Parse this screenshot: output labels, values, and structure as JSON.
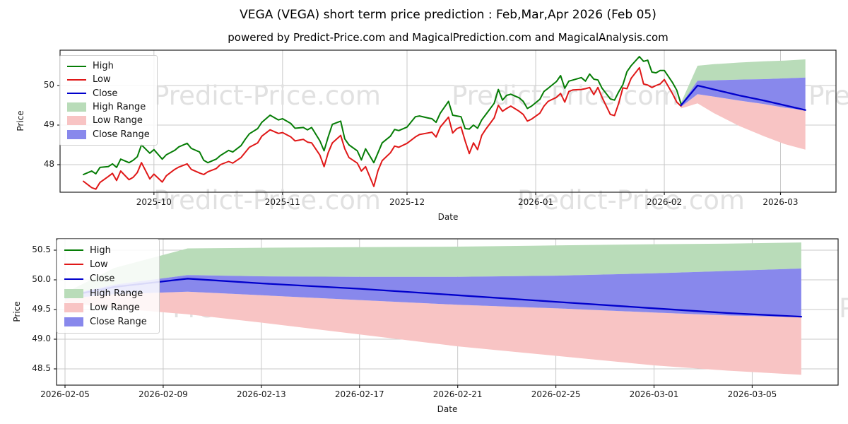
{
  "title": "VEGA (VEGA) short term price prediction : Feb,Mar,Apr 2026 (Feb 05)",
  "subtitle": "powered by Predict-Price.com and MagicalPrediction.com and MagicalAnalysis.com",
  "watermark_text": "Predict-Price.com",
  "colors": {
    "high": "#067d06",
    "low": "#e01818",
    "close": "#0000cc",
    "high_range": "#b9dcb9",
    "low_range": "#f8c4c4",
    "close_range": "#8888ec",
    "grid": "#c9c9c9",
    "axis": "#222222",
    "watermark": "#e1e1e1"
  },
  "legend_items": [
    {
      "label": "High",
      "type": "line",
      "color_key": "high"
    },
    {
      "label": "Low",
      "type": "line",
      "color_key": "low"
    },
    {
      "label": "Close",
      "type": "line",
      "color_key": "close"
    },
    {
      "label": "High Range",
      "type": "patch",
      "color_key": "high_range"
    },
    {
      "label": "Low Range",
      "type": "patch",
      "color_key": "low_range"
    },
    {
      "label": "Close Range",
      "type": "patch",
      "color_key": "close_range"
    }
  ],
  "chart_data": [
    {
      "type": "line",
      "name": "historical-and-forecast",
      "xlabel": "Date",
      "ylabel": "Price",
      "legend_position": "upper left",
      "grid": true,
      "ylim": [
        47.3,
        50.9
      ],
      "start_date": "2025-09-14",
      "offset_unit": "days",
      "x_ticks": [
        {
          "offset": 17,
          "label": "2025-10"
        },
        {
          "offset": 48,
          "label": "2025-11"
        },
        {
          "offset": 78,
          "label": "2025-12"
        },
        {
          "offset": 109,
          "label": "2026-01"
        },
        {
          "offset": 140,
          "label": "2026-02"
        },
        {
          "offset": 168,
          "label": "2026-03"
        }
      ],
      "y_ticks": [
        {
          "value": 48,
          "label": "48"
        },
        {
          "value": 49,
          "label": "49"
        },
        {
          "value": 50,
          "label": "50"
        }
      ],
      "history_rows_format": [
        "day_offset",
        "high",
        "low"
      ],
      "history": [
        [
          0,
          47.75,
          47.58
        ],
        [
          2,
          47.84,
          47.42
        ],
        [
          3,
          47.77,
          47.38
        ],
        [
          4,
          47.93,
          47.55
        ],
        [
          6,
          47.95,
          47.7
        ],
        [
          7,
          48.02,
          47.78
        ],
        [
          8,
          47.93,
          47.6
        ],
        [
          9,
          48.14,
          47.84
        ],
        [
          11,
          48.05,
          47.62
        ],
        [
          12,
          48.11,
          47.68
        ],
        [
          13,
          48.2,
          47.8
        ],
        [
          14,
          48.5,
          48.05
        ],
        [
          16,
          48.29,
          47.64
        ],
        [
          17,
          48.38,
          47.76
        ],
        [
          19,
          48.14,
          47.56
        ],
        [
          20,
          48.25,
          47.72
        ],
        [
          22,
          48.36,
          47.88
        ],
        [
          23,
          48.45,
          47.94
        ],
        [
          25,
          48.54,
          48.02
        ],
        [
          26,
          48.41,
          47.88
        ],
        [
          28,
          48.32,
          47.79
        ],
        [
          29,
          48.11,
          47.75
        ],
        [
          30,
          48.05,
          47.82
        ],
        [
          32,
          48.14,
          47.9
        ],
        [
          33,
          48.23,
          48.0
        ],
        [
          35,
          48.36,
          48.08
        ],
        [
          36,
          48.32,
          48.04
        ],
        [
          38,
          48.48,
          48.18
        ],
        [
          39,
          48.64,
          48.31
        ],
        [
          40,
          48.78,
          48.44
        ],
        [
          42,
          48.91,
          48.55
        ],
        [
          43,
          49.07,
          48.72
        ],
        [
          45,
          49.25,
          48.88
        ],
        [
          47,
          49.13,
          48.79
        ],
        [
          48,
          49.16,
          48.81
        ],
        [
          50,
          49.04,
          48.7
        ],
        [
          51,
          48.92,
          48.6
        ],
        [
          53,
          48.94,
          48.64
        ],
        [
          54,
          48.88,
          48.57
        ],
        [
          55,
          48.94,
          48.55
        ],
        [
          57,
          48.6,
          48.24
        ],
        [
          58,
          48.35,
          47.95
        ],
        [
          59,
          48.7,
          48.3
        ],
        [
          60,
          49.02,
          48.55
        ],
        [
          62,
          49.1,
          48.74
        ],
        [
          63,
          48.65,
          48.4
        ],
        [
          64,
          48.5,
          48.18
        ],
        [
          66,
          48.35,
          48.04
        ],
        [
          67,
          48.12,
          47.84
        ],
        [
          68,
          48.4,
          47.95
        ],
        [
          70,
          48.05,
          47.45
        ],
        [
          71,
          48.3,
          47.85
        ],
        [
          72,
          48.55,
          48.1
        ],
        [
          74,
          48.72,
          48.3
        ],
        [
          75,
          48.89,
          48.47
        ],
        [
          76,
          48.86,
          48.44
        ],
        [
          78,
          48.95,
          48.54
        ],
        [
          80,
          49.21,
          48.7
        ],
        [
          81,
          49.23,
          48.76
        ],
        [
          83,
          49.18,
          48.8
        ],
        [
          84,
          49.16,
          48.82
        ],
        [
          85,
          49.07,
          48.7
        ],
        [
          86,
          49.3,
          48.95
        ],
        [
          88,
          49.6,
          49.2
        ],
        [
          89,
          49.25,
          48.8
        ],
        [
          90,
          49.23,
          48.91
        ],
        [
          91,
          49.21,
          48.95
        ],
        [
          92,
          48.91,
          48.6
        ],
        [
          93,
          48.9,
          48.28
        ],
        [
          94,
          49.0,
          48.55
        ],
        [
          95,
          48.92,
          48.38
        ],
        [
          96,
          49.13,
          48.74
        ],
        [
          97,
          49.27,
          48.9
        ],
        [
          99,
          49.55,
          49.18
        ],
        [
          100,
          49.9,
          49.5
        ],
        [
          101,
          49.63,
          49.35
        ],
        [
          102,
          49.75,
          49.42
        ],
        [
          103,
          49.78,
          49.48
        ],
        [
          105,
          49.69,
          49.35
        ],
        [
          106,
          49.6,
          49.27
        ],
        [
          107,
          49.42,
          49.1
        ],
        [
          108,
          49.48,
          49.15
        ],
        [
          110,
          49.65,
          49.3
        ],
        [
          111,
          49.85,
          49.48
        ],
        [
          112,
          49.93,
          49.6
        ],
        [
          114,
          50.1,
          49.7
        ],
        [
          115,
          50.25,
          49.8
        ],
        [
          116,
          49.93,
          49.58
        ],
        [
          117,
          50.11,
          49.85
        ],
        [
          118,
          50.14,
          49.89
        ],
        [
          120,
          50.2,
          49.9
        ],
        [
          121,
          50.11,
          49.92
        ],
        [
          122,
          50.29,
          49.95
        ],
        [
          123,
          50.16,
          49.77
        ],
        [
          124,
          50.14,
          49.95
        ],
        [
          125,
          49.93,
          49.7
        ],
        [
          127,
          49.66,
          49.27
        ],
        [
          128,
          49.63,
          49.24
        ],
        [
          129,
          49.84,
          49.55
        ],
        [
          130,
          50.02,
          49.94
        ],
        [
          131,
          50.35,
          49.92
        ],
        [
          132,
          50.5,
          50.18
        ],
        [
          134,
          50.73,
          50.45
        ],
        [
          135,
          50.61,
          50.04
        ],
        [
          136,
          50.64,
          50.01
        ],
        [
          137,
          50.34,
          49.95
        ],
        [
          138,
          50.32,
          50.0
        ],
        [
          139,
          50.38,
          50.04
        ],
        [
          140,
          50.38,
          50.15
        ],
        [
          142,
          50.07,
          49.79
        ],
        [
          143,
          49.88,
          49.58
        ],
        [
          144,
          49.54,
          49.48
        ]
      ],
      "prediction": {
        "offsets": [
          144,
          148,
          152,
          158,
          164,
          169,
          174
        ],
        "high_range_top": [
          49.56,
          50.5,
          50.54,
          50.58,
          50.61,
          50.63,
          50.66
        ],
        "close_range_top": [
          49.52,
          50.12,
          50.13,
          50.15,
          50.16,
          50.18,
          50.2
        ],
        "close": [
          49.5,
          50.0,
          49.9,
          49.75,
          49.62,
          49.5,
          49.38
        ],
        "close_range_bottom": [
          49.46,
          49.78,
          49.72,
          49.62,
          49.53,
          49.44,
          49.37
        ],
        "low_range_top": [
          49.46,
          49.78,
          49.72,
          49.62,
          49.53,
          49.44,
          49.37
        ],
        "low_range_bottom": [
          49.42,
          49.55,
          49.3,
          48.98,
          48.72,
          48.52,
          48.38
        ]
      }
    },
    {
      "type": "line",
      "name": "forecast-zoom",
      "xlabel": "Date",
      "ylabel": "Price",
      "legend_position": "upper left",
      "grid": true,
      "ylim": [
        48.23,
        50.69
      ],
      "start_date": "2026-02-05",
      "offset_unit": "days",
      "x_ticks": [
        {
          "offset": 0,
          "label": "2026-02-05"
        },
        {
          "offset": 4,
          "label": "2026-02-09"
        },
        {
          "offset": 8,
          "label": "2026-02-13"
        },
        {
          "offset": 12,
          "label": "2026-02-17"
        },
        {
          "offset": 16,
          "label": "2026-02-21"
        },
        {
          "offset": 20,
          "label": "2026-02-25"
        },
        {
          "offset": 24,
          "label": "2026-03-01"
        },
        {
          "offset": 28,
          "label": "2026-03-05"
        }
      ],
      "y_ticks": [
        {
          "value": 48.5,
          "label": "48.5"
        },
        {
          "value": 49.0,
          "label": "49.0"
        },
        {
          "value": 49.5,
          "label": "49.5"
        },
        {
          "value": 50.0,
          "label": "50.0"
        },
        {
          "value": 50.5,
          "label": "50.5"
        }
      ],
      "prediction": {
        "offsets": [
          0,
          2,
          5,
          8,
          12,
          16,
          20,
          24,
          27,
          30
        ],
        "high_range_top": [
          49.78,
          50.2,
          50.53,
          50.54,
          50.55,
          50.56,
          50.58,
          50.6,
          50.61,
          50.63
        ],
        "close_range_top": [
          49.74,
          49.92,
          50.08,
          50.06,
          50.05,
          50.05,
          50.07,
          50.11,
          50.15,
          50.19
        ],
        "close": [
          49.72,
          49.88,
          50.02,
          49.94,
          49.85,
          49.74,
          49.63,
          49.52,
          49.44,
          49.38
        ],
        "close_range_bottom": [
          49.68,
          49.76,
          49.8,
          49.74,
          49.66,
          49.58,
          49.52,
          49.45,
          49.4,
          49.37
        ],
        "low_range_top": [
          49.68,
          49.76,
          49.8,
          49.74,
          49.66,
          49.58,
          49.52,
          49.45,
          49.4,
          49.37
        ],
        "low_range_bottom": [
          49.62,
          49.52,
          49.42,
          49.28,
          49.08,
          48.88,
          48.72,
          48.56,
          48.47,
          48.4
        ]
      }
    }
  ]
}
